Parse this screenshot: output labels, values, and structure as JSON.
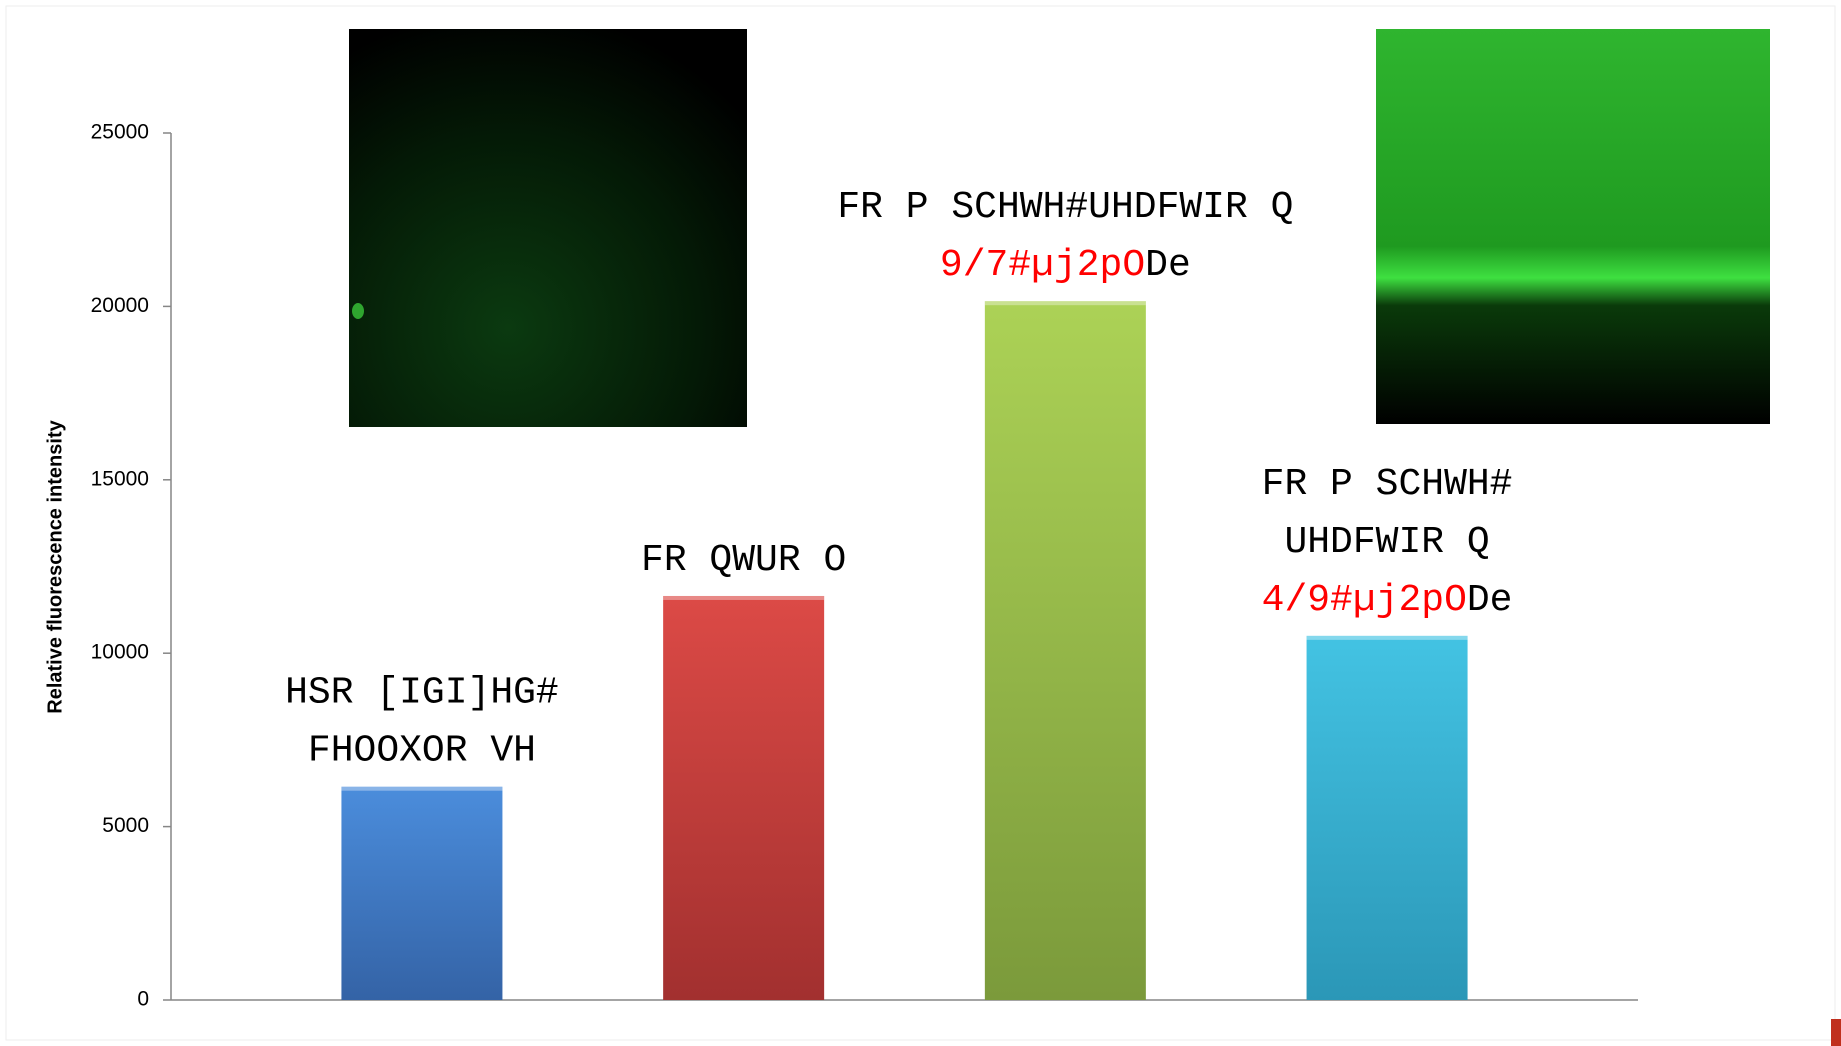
{
  "chart_data": {
    "type": "bar",
    "y_label": "Relative fluorescence intensity",
    "categories": [
      [
        [
          {
            "text": "HSR [IGI]HG#",
            "color": "#000000"
          }
        ],
        [
          {
            "text": "FHOOXOR VH",
            "color": "#000000"
          }
        ]
      ],
      [
        [
          {
            "text": "FR QWUR O",
            "color": "#000000"
          }
        ]
      ],
      [
        [
          {
            "text": "FR P SCHWH#UHDFWIR Q",
            "color": "#000000"
          }
        ],
        [
          {
            "text": "9/7#µj2pO",
            "color": "#ff0000"
          },
          {
            "text": "De",
            "color": "#000000"
          }
        ]
      ],
      [
        [
          {
            "text": "FR P SCHWH#",
            "color": "#000000"
          }
        ],
        [
          {
            "text": "UHDFWIR Q",
            "color": "#000000"
          }
        ],
        [
          {
            "text": "4/9#µj2pO",
            "color": "#ff0000"
          },
          {
            "text": "De",
            "color": "#000000"
          }
        ]
      ]
    ],
    "values": [
      6150,
      11650,
      20150,
      10500
    ],
    "colors": [
      [
        "#4b8ddc",
        "#3463a6"
      ],
      [
        "#dc4a46",
        "#a2302f"
      ],
      [
        "#acd256",
        "#7b9a3b"
      ],
      [
        "#43c3e3",
        "#2b97b7"
      ]
    ],
    "ylim": [
      0,
      25000
    ],
    "yticks": [
      0,
      5000,
      10000,
      15000,
      20000,
      25000
    ]
  }
}
